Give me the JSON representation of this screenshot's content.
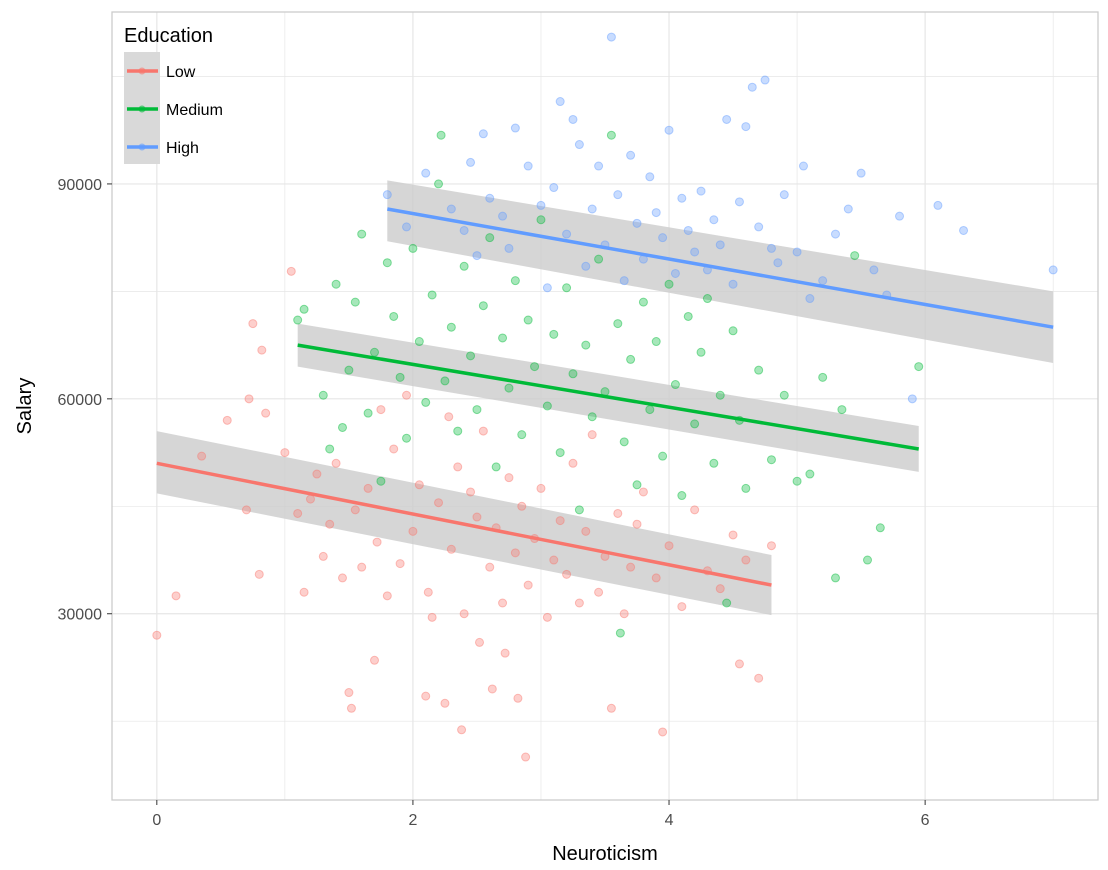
{
  "chart_data": {
    "type": "scatter",
    "title": "",
    "xlabel": "Neuroticism",
    "ylabel": "Salary",
    "xlim": [
      -0.35,
      7.35
    ],
    "ylim": [
      4000,
      114000
    ],
    "xticks": [
      0,
      2,
      4,
      6
    ],
    "yticks": [
      30000,
      60000,
      90000
    ],
    "x_tick_labels": [
      "0",
      "2",
      "4",
      "6"
    ],
    "y_tick_labels": [
      "30000",
      "60000",
      "90000"
    ],
    "grid": true,
    "legend": {
      "title": "Education",
      "position": "top-left",
      "entries": [
        "Low",
        "Medium",
        "High"
      ]
    },
    "series": [
      {
        "name": "Low",
        "color": "#F8766D",
        "fit": {
          "x": [
            0,
            4.8
          ],
          "y": [
            51000,
            34000
          ]
        },
        "ci_upper": [
          55500,
          38200
        ],
        "ci_lower": [
          46800,
          29800
        ],
        "points": [
          [
            0,
            27000
          ],
          [
            0.15,
            32500
          ],
          [
            0.35,
            52000
          ],
          [
            0.55,
            57000
          ],
          [
            0.7,
            44500
          ],
          [
            0.72,
            60000
          ],
          [
            0.75,
            70500
          ],
          [
            0.8,
            35500
          ],
          [
            0.82,
            66800
          ],
          [
            0.85,
            58000
          ],
          [
            1.0,
            52500
          ],
          [
            1.05,
            77800
          ],
          [
            1.1,
            44000
          ],
          [
            1.15,
            33000
          ],
          [
            1.2,
            46000
          ],
          [
            1.25,
            49500
          ],
          [
            1.3,
            38000
          ],
          [
            1.35,
            42500
          ],
          [
            1.4,
            51000
          ],
          [
            1.45,
            35000
          ],
          [
            1.5,
            19000
          ],
          [
            1.52,
            16800
          ],
          [
            1.55,
            44500
          ],
          [
            1.6,
            36500
          ],
          [
            1.65,
            47500
          ],
          [
            1.7,
            23500
          ],
          [
            1.72,
            40000
          ],
          [
            1.75,
            58500
          ],
          [
            1.8,
            32500
          ],
          [
            1.85,
            53000
          ],
          [
            1.9,
            37000
          ],
          [
            1.95,
            60500
          ],
          [
            2.0,
            41500
          ],
          [
            2.05,
            48000
          ],
          [
            2.1,
            18500
          ],
          [
            2.12,
            33000
          ],
          [
            2.15,
            29500
          ],
          [
            2.2,
            45500
          ],
          [
            2.25,
            17500
          ],
          [
            2.28,
            57500
          ],
          [
            2.3,
            39000
          ],
          [
            2.35,
            50500
          ],
          [
            2.38,
            13800
          ],
          [
            2.4,
            30000
          ],
          [
            2.45,
            47000
          ],
          [
            2.5,
            43500
          ],
          [
            2.52,
            26000
          ],
          [
            2.55,
            55500
          ],
          [
            2.6,
            36500
          ],
          [
            2.62,
            19500
          ],
          [
            2.65,
            42000
          ],
          [
            2.7,
            31500
          ],
          [
            2.72,
            24500
          ],
          [
            2.75,
            49000
          ],
          [
            2.8,
            38500
          ],
          [
            2.82,
            18200
          ],
          [
            2.85,
            45000
          ],
          [
            2.88,
            10000
          ],
          [
            2.9,
            34000
          ],
          [
            2.95,
            40500
          ],
          [
            3.0,
            47500
          ],
          [
            3.05,
            29500
          ],
          [
            3.1,
            37500
          ],
          [
            3.15,
            43000
          ],
          [
            3.2,
            35500
          ],
          [
            3.25,
            51000
          ],
          [
            3.3,
            31500
          ],
          [
            3.35,
            41500
          ],
          [
            3.4,
            55000
          ],
          [
            3.45,
            33000
          ],
          [
            3.5,
            38000
          ],
          [
            3.55,
            16800
          ],
          [
            3.6,
            44000
          ],
          [
            3.65,
            30000
          ],
          [
            3.7,
            36500
          ],
          [
            3.75,
            42500
          ],
          [
            3.8,
            47000
          ],
          [
            3.9,
            35000
          ],
          [
            3.95,
            13500
          ],
          [
            4.0,
            39500
          ],
          [
            4.1,
            31000
          ],
          [
            4.2,
            44500
          ],
          [
            4.3,
            36000
          ],
          [
            4.4,
            33500
          ],
          [
            4.5,
            41000
          ],
          [
            4.55,
            23000
          ],
          [
            4.6,
            37500
          ],
          [
            4.7,
            21000
          ],
          [
            4.8,
            39500
          ]
        ]
      },
      {
        "name": "Medium",
        "color": "#00BA38",
        "fit": {
          "x": [
            1.1,
            5.95
          ],
          "y": [
            67500,
            53000
          ]
        },
        "ci_upper": [
          70500,
          56200
        ],
        "ci_lower": [
          64500,
          49800
        ],
        "points": [
          [
            1.1,
            71000
          ],
          [
            1.15,
            72500
          ],
          [
            1.3,
            60500
          ],
          [
            1.35,
            53000
          ],
          [
            1.4,
            76000
          ],
          [
            1.45,
            56000
          ],
          [
            1.5,
            64000
          ],
          [
            1.55,
            73500
          ],
          [
            1.6,
            83000
          ],
          [
            1.65,
            58000
          ],
          [
            1.7,
            66500
          ],
          [
            1.75,
            48500
          ],
          [
            1.8,
            79000
          ],
          [
            1.85,
            71500
          ],
          [
            1.9,
            63000
          ],
          [
            1.95,
            54500
          ],
          [
            2.0,
            81000
          ],
          [
            2.05,
            68000
          ],
          [
            2.1,
            59500
          ],
          [
            2.15,
            74500
          ],
          [
            2.2,
            90000
          ],
          [
            2.22,
            96800
          ],
          [
            2.25,
            62500
          ],
          [
            2.3,
            70000
          ],
          [
            2.35,
            55500
          ],
          [
            2.4,
            78500
          ],
          [
            2.45,
            66000
          ],
          [
            2.5,
            58500
          ],
          [
            2.55,
            73000
          ],
          [
            2.6,
            82500
          ],
          [
            2.65,
            50500
          ],
          [
            2.7,
            68500
          ],
          [
            2.75,
            61500
          ],
          [
            2.8,
            76500
          ],
          [
            2.85,
            55000
          ],
          [
            2.9,
            71000
          ],
          [
            2.95,
            64500
          ],
          [
            3.0,
            85000
          ],
          [
            3.05,
            59000
          ],
          [
            3.1,
            69000
          ],
          [
            3.15,
            52500
          ],
          [
            3.2,
            75500
          ],
          [
            3.25,
            63500
          ],
          [
            3.3,
            44500
          ],
          [
            3.35,
            67500
          ],
          [
            3.4,
            57500
          ],
          [
            3.45,
            79500
          ],
          [
            3.5,
            61000
          ],
          [
            3.55,
            96800
          ],
          [
            3.6,
            70500
          ],
          [
            3.62,
            27300
          ],
          [
            3.65,
            54000
          ],
          [
            3.7,
            65500
          ],
          [
            3.75,
            48000
          ],
          [
            3.8,
            73500
          ],
          [
            3.85,
            58500
          ],
          [
            3.9,
            68000
          ],
          [
            3.95,
            52000
          ],
          [
            4.0,
            76000
          ],
          [
            4.05,
            62000
          ],
          [
            4.1,
            46500
          ],
          [
            4.15,
            71500
          ],
          [
            4.2,
            56500
          ],
          [
            4.25,
            66500
          ],
          [
            4.3,
            74000
          ],
          [
            4.35,
            51000
          ],
          [
            4.4,
            60500
          ],
          [
            4.45,
            31500
          ],
          [
            4.5,
            69500
          ],
          [
            4.55,
            57000
          ],
          [
            4.6,
            47500
          ],
          [
            4.7,
            64000
          ],
          [
            4.8,
            51500
          ],
          [
            4.9,
            60500
          ],
          [
            5.0,
            48500
          ],
          [
            5.1,
            49500
          ],
          [
            5.2,
            63000
          ],
          [
            5.3,
            35000
          ],
          [
            5.35,
            58500
          ],
          [
            5.45,
            80000
          ],
          [
            5.55,
            37500
          ],
          [
            5.65,
            42000
          ],
          [
            5.95,
            64500
          ]
        ]
      },
      {
        "name": "High",
        "color": "#619CFF",
        "fit": {
          "x": [
            1.8,
            7.0
          ],
          "y": [
            86500,
            70000
          ]
        },
        "ci_upper": [
          90500,
          75000
        ],
        "ci_lower": [
          82000,
          65000
        ],
        "points": [
          [
            1.8,
            88500
          ],
          [
            1.95,
            84000
          ],
          [
            2.1,
            91500
          ],
          [
            2.3,
            86500
          ],
          [
            2.4,
            83500
          ],
          [
            2.45,
            93000
          ],
          [
            2.5,
            80000
          ],
          [
            2.55,
            97000
          ],
          [
            2.6,
            88000
          ],
          [
            2.7,
            85500
          ],
          [
            2.75,
            81000
          ],
          [
            2.8,
            97800
          ],
          [
            2.9,
            92500
          ],
          [
            3.0,
            87000
          ],
          [
            3.05,
            75500
          ],
          [
            3.1,
            89500
          ],
          [
            3.15,
            101500
          ],
          [
            3.2,
            83000
          ],
          [
            3.25,
            99000
          ],
          [
            3.3,
            95500
          ],
          [
            3.35,
            78500
          ],
          [
            3.4,
            86500
          ],
          [
            3.45,
            92500
          ],
          [
            3.5,
            81500
          ],
          [
            3.55,
            110500
          ],
          [
            3.6,
            88500
          ],
          [
            3.65,
            76500
          ],
          [
            3.7,
            94000
          ],
          [
            3.75,
            84500
          ],
          [
            3.8,
            79500
          ],
          [
            3.85,
            91000
          ],
          [
            3.9,
            86000
          ],
          [
            3.95,
            82500
          ],
          [
            4.0,
            97500
          ],
          [
            4.05,
            77500
          ],
          [
            4.1,
            88000
          ],
          [
            4.15,
            83500
          ],
          [
            4.2,
            80500
          ],
          [
            4.25,
            89000
          ],
          [
            4.3,
            78000
          ],
          [
            4.35,
            85000
          ],
          [
            4.4,
            81500
          ],
          [
            4.45,
            99000
          ],
          [
            4.5,
            76000
          ],
          [
            4.55,
            87500
          ],
          [
            4.6,
            98000
          ],
          [
            4.65,
            103500
          ],
          [
            4.7,
            84000
          ],
          [
            4.75,
            104500
          ],
          [
            4.8,
            81000
          ],
          [
            4.85,
            79000
          ],
          [
            4.9,
            88500
          ],
          [
            5.0,
            80500
          ],
          [
            5.05,
            92500
          ],
          [
            5.1,
            74000
          ],
          [
            5.2,
            76500
          ],
          [
            5.3,
            83000
          ],
          [
            5.4,
            86500
          ],
          [
            5.5,
            91500
          ],
          [
            5.6,
            78000
          ],
          [
            5.7,
            74500
          ],
          [
            5.8,
            85500
          ],
          [
            5.9,
            60000
          ],
          [
            6.1,
            87000
          ],
          [
            6.3,
            83500
          ],
          [
            7.0,
            78000
          ]
        ]
      }
    ]
  }
}
